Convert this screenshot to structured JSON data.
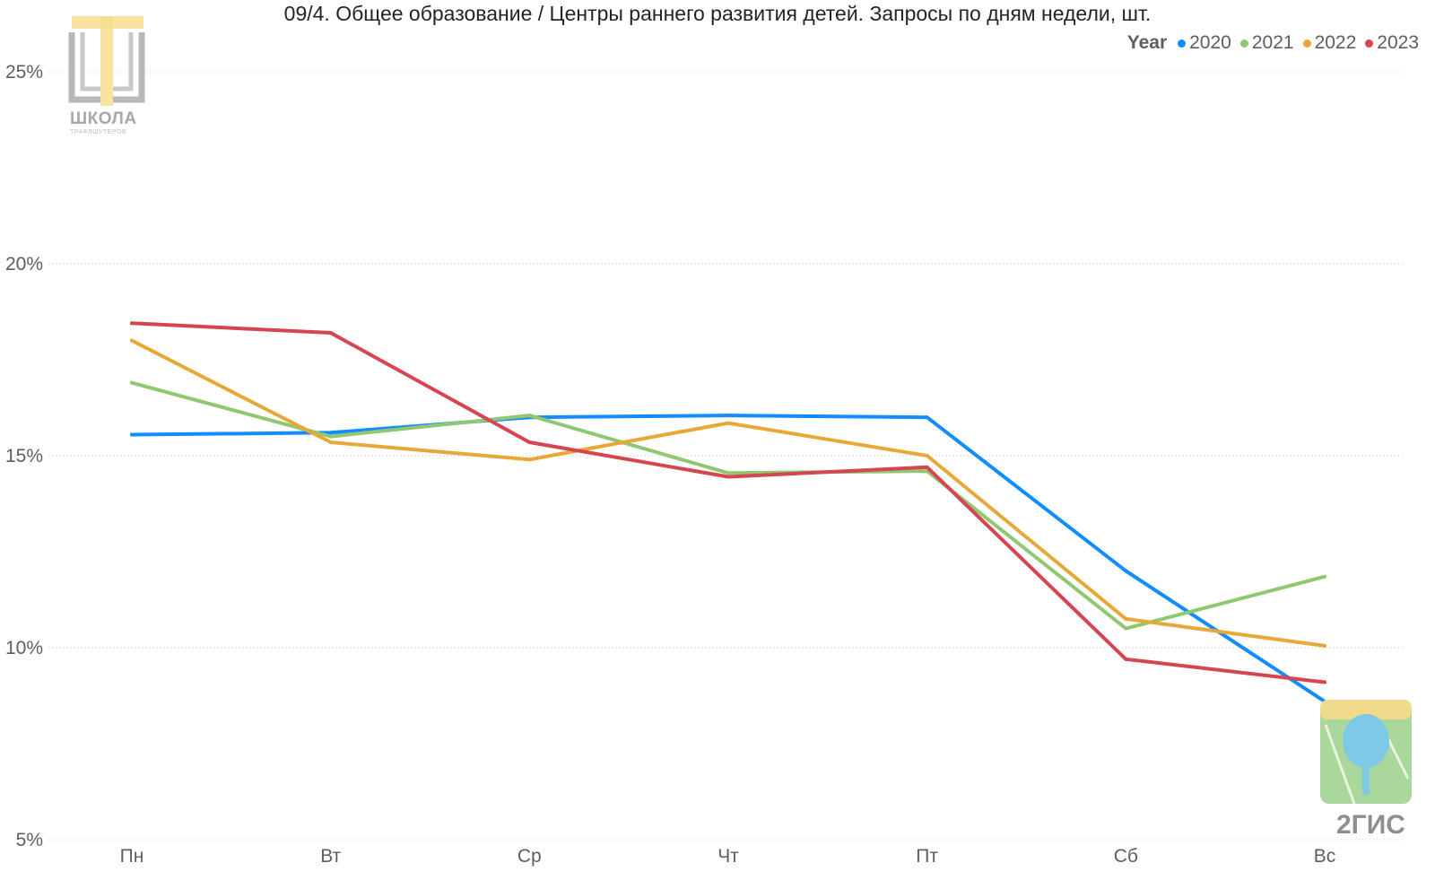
{
  "title": "09/4. Общее образование / Центры раннего развития детей. Запросы по дням недели, шт.",
  "legend": {
    "title": "Year",
    "items": [
      {
        "label": "2020",
        "color": "#118dff"
      },
      {
        "label": "2021",
        "color": "#8fc870"
      },
      {
        "label": "2022",
        "color": "#e8a838"
      },
      {
        "label": "2023",
        "color": "#d64550"
      }
    ]
  },
  "watermarks": {
    "top_text": "ШКОЛА",
    "top_sub": "ТРАФЛШУТЕРОВ",
    "bottom_text": "2ГИС"
  },
  "chart_data": {
    "type": "line",
    "title": "09/4. Общее образование / Центры раннего развития детей. Запросы по дням недели, шт.",
    "categories": [
      "Пн",
      "Вт",
      "Ср",
      "Чт",
      "Пт",
      "Сб",
      "Вс"
    ],
    "y_ticks": [
      "5%",
      "10%",
      "15%",
      "20%",
      "25%"
    ],
    "y_tick_values": [
      5,
      10,
      15,
      20,
      25
    ],
    "ylim": [
      5,
      25
    ],
    "grid": true,
    "legend_position": "top-right",
    "series": [
      {
        "name": "2020",
        "color": "#118dff",
        "values": [
          15.55,
          15.6,
          16.0,
          16.05,
          16.0,
          12.0,
          8.6
        ]
      },
      {
        "name": "2021",
        "color": "#8fc870",
        "values": [
          16.9,
          15.5,
          16.05,
          14.55,
          14.6,
          10.5,
          11.85
        ]
      },
      {
        "name": "2022",
        "color": "#e8a838",
        "values": [
          18.0,
          15.35,
          14.9,
          15.85,
          15.0,
          10.75,
          10.05
        ]
      },
      {
        "name": "2023",
        "color": "#d64550",
        "values": [
          18.45,
          18.2,
          15.35,
          14.45,
          14.7,
          9.7,
          9.1
        ]
      }
    ]
  }
}
